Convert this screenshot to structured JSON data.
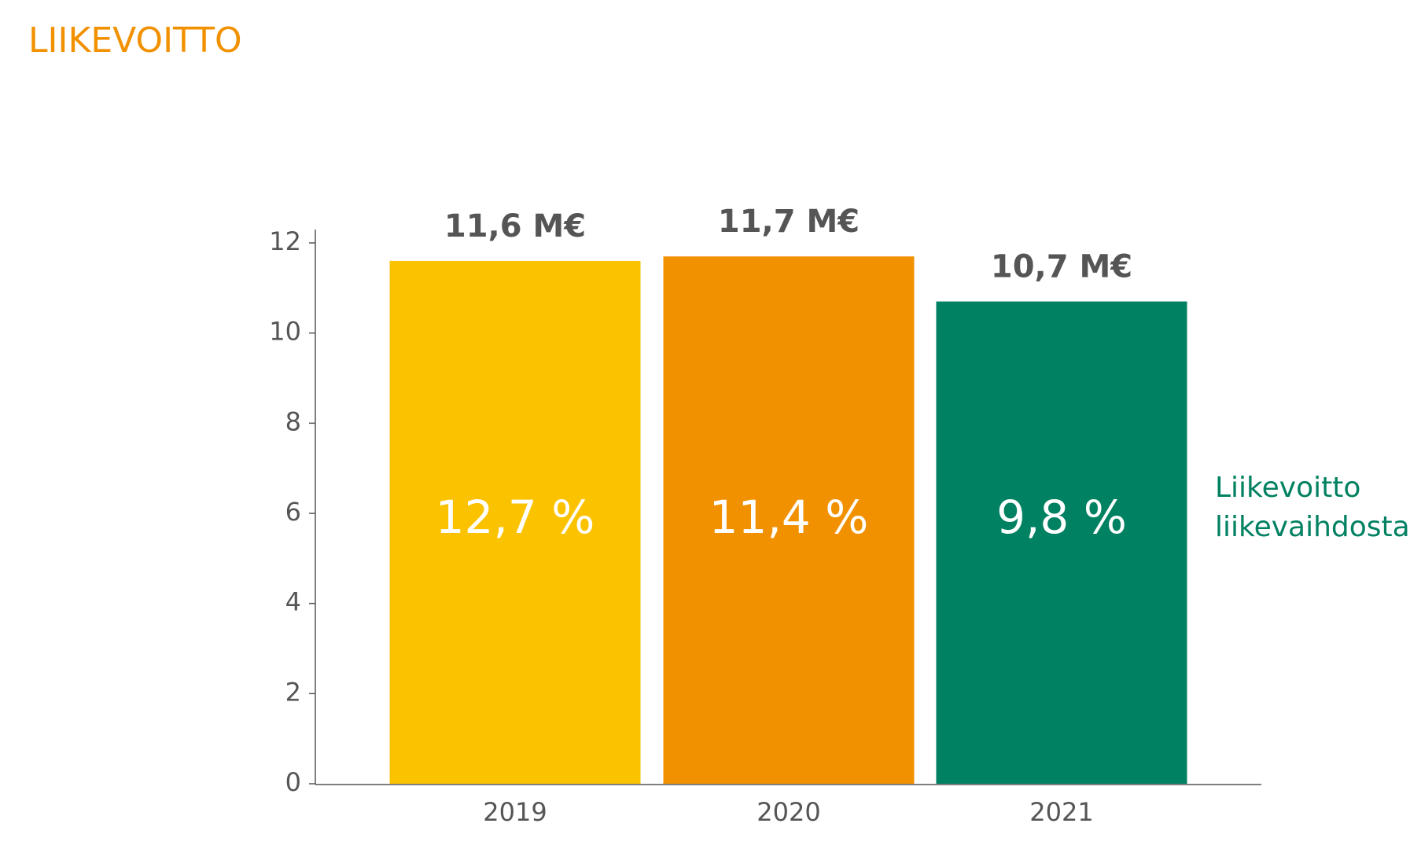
{
  "chart_data": {
    "type": "bar",
    "title": "LIIKEVOITTO",
    "categories": [
      "2019",
      "2020",
      "2021"
    ],
    "values": [
      11.6,
      11.7,
      10.7
    ],
    "value_labels": [
      "11,6 M€",
      "11,7 M€",
      "10,7 M€"
    ],
    "colors": [
      "#fbc200",
      "#f29100",
      "#008161"
    ],
    "margin": {
      "name": [
        "Liikevoitto",
        "liikevaihdosta"
      ],
      "color": "#008161",
      "values": [
        12.7,
        11.4,
        9.8
      ],
      "value_labels": [
        "12,7 %",
        "11,4 %",
        "9,8 %"
      ]
    },
    "ylim": [
      0,
      12
    ],
    "yticks": [
      0,
      2,
      4,
      6,
      8,
      10,
      12
    ],
    "grid": false
  }
}
